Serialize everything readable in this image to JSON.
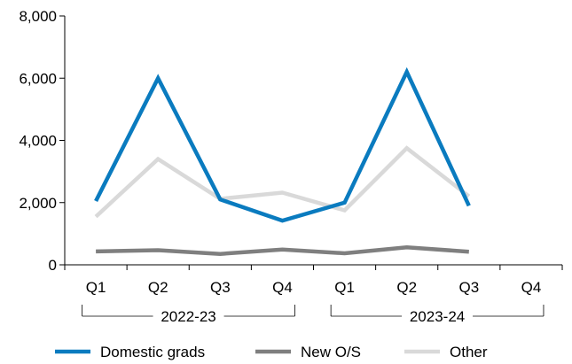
{
  "chart_data": {
    "type": "line",
    "categories": [
      "Q1",
      "Q2",
      "Q3",
      "Q4",
      "Q1",
      "Q2",
      "Q3",
      "Q4"
    ],
    "groups": [
      {
        "label": "2022-23",
        "span": [
          0,
          3
        ]
      },
      {
        "label": "2023-24",
        "span": [
          4,
          7
        ]
      }
    ],
    "series": [
      {
        "name": "Domestic grads",
        "color": "#0a7bbf",
        "values": [
          2050,
          6000,
          2100,
          1420,
          2000,
          6200,
          1900,
          null
        ]
      },
      {
        "name": "New O/S",
        "color": "#7f7f7f",
        "values": [
          430,
          470,
          350,
          490,
          370,
          560,
          420,
          null
        ]
      },
      {
        "name": "Other",
        "color": "#d9d9d9",
        "values": [
          1550,
          3400,
          2120,
          2320,
          1750,
          3750,
          2200,
          null
        ]
      }
    ],
    "yticks": [
      "0",
      "2,000",
      "4,000",
      "6,000",
      "8,000"
    ],
    "ylim": [
      0,
      8000
    ],
    "legend_position": "bottom",
    "grid": false
  }
}
